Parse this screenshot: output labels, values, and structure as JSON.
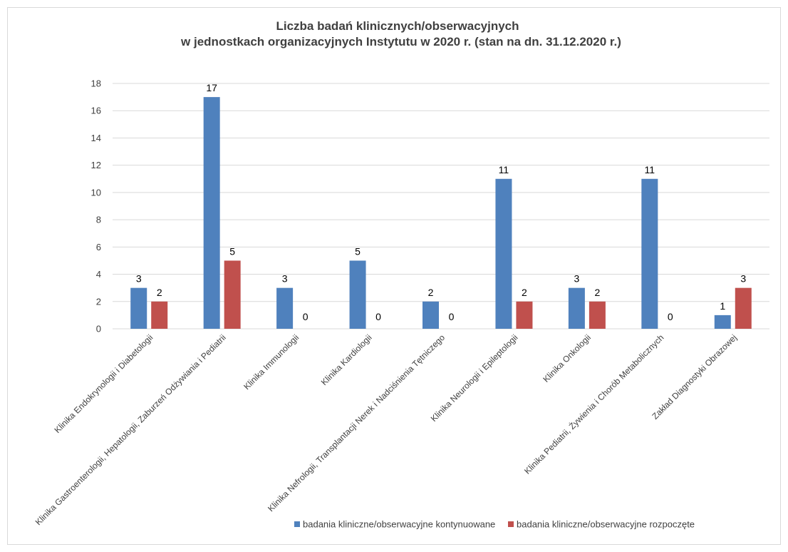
{
  "chart_data": {
    "type": "bar",
    "title_lines": [
      "Liczba badań klinicznych/obserwacyjnych",
      "w jednostkach organizacyjnych Instytutu w 2020 r. (stan na dn. 31.12.2020 r.)"
    ],
    "xlabel": "",
    "ylabel": "",
    "ylim": [
      0,
      18
    ],
    "yticks": [
      0,
      2,
      4,
      6,
      8,
      10,
      12,
      14,
      16,
      18
    ],
    "grid": true,
    "legend_position": "bottom",
    "categories": [
      "Klinika Endokrynologii i Diabetologii",
      "Klinika Gastroenterologii, Hepatologii, Zaburzeń Odżywiania i Pediatrii",
      "Klinika Immunologii",
      "Klinika Kardiologii",
      "Klinika Nefrologii, Transplantacji Nerek i Nadciśnienia Tętniczego",
      "Klinika Neurologii i Epileptologii",
      "Klinika Onkologii",
      "Klinika Pediatrii, Żywienia i Chorób Metabolicznych",
      "Zakład Diagnostyki Obrazowej"
    ],
    "series": [
      {
        "name": "badania kliniczne/obserwacyjne kontynuowane",
        "color": "#4f81bd",
        "values": [
          3,
          17,
          3,
          5,
          2,
          11,
          3,
          11,
          1
        ]
      },
      {
        "name": "badania kliniczne/obserwacyjne rozpoczęte",
        "color": "#c0504d",
        "values": [
          2,
          5,
          0,
          0,
          0,
          2,
          2,
          0,
          3
        ]
      }
    ]
  }
}
